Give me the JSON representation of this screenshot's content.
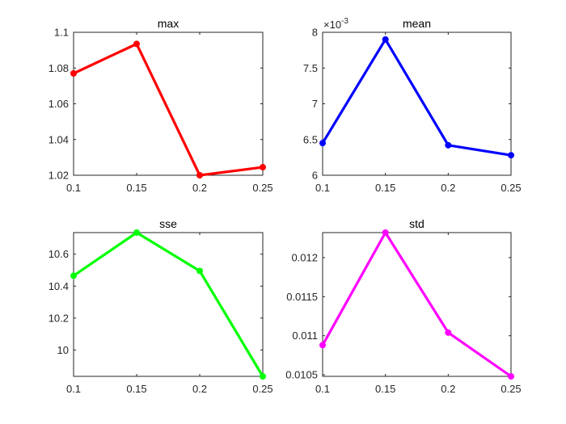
{
  "figure": {
    "background": "#ffffff"
  },
  "chart_data": [
    {
      "type": "line",
      "title": "max",
      "x": [
        0.1,
        0.15,
        0.2,
        0.25
      ],
      "y": [
        1.077,
        1.0935,
        1.02,
        1.0245
      ],
      "color": "#ff0000",
      "xlim": [
        0.1,
        0.25
      ],
      "ylim": [
        1.02,
        1.1
      ],
      "xticks": [
        0.1,
        0.15,
        0.2,
        0.25
      ],
      "xtick_labels": [
        "0.1",
        "0.15",
        "0.2",
        "0.25"
      ],
      "yticks": [
        1.02,
        1.04,
        1.06,
        1.08,
        1.1
      ],
      "ytick_labels": [
        "1.02",
        "1.04",
        "1.06",
        "1.08",
        "1.1"
      ],
      "exponent": ""
    },
    {
      "type": "line",
      "title": "mean",
      "x": [
        0.1,
        0.15,
        0.2,
        0.25
      ],
      "y": [
        6.45,
        7.9,
        6.42,
        6.28
      ],
      "color": "#0000ff",
      "xlim": [
        0.1,
        0.25
      ],
      "ylim": [
        6,
        8
      ],
      "xticks": [
        0.1,
        0.15,
        0.2,
        0.25
      ],
      "xtick_labels": [
        "0.1",
        "0.15",
        "0.2",
        "0.25"
      ],
      "yticks": [
        6,
        6.5,
        7,
        7.5,
        8
      ],
      "ytick_labels": [
        "6",
        "6.5",
        "7",
        "7.5",
        "8"
      ],
      "exponent": "×10",
      "exponent_power": "-3"
    },
    {
      "type": "line",
      "title": "sse",
      "x": [
        0.1,
        0.15,
        0.2,
        0.25
      ],
      "y": [
        10.465,
        10.735,
        10.495,
        9.835
      ],
      "color": "#00ff00",
      "xlim": [
        0.1,
        0.25
      ],
      "ylim": [
        9.835,
        10.735
      ],
      "xticks": [
        0.1,
        0.15,
        0.2,
        0.25
      ],
      "xtick_labels": [
        "0.1",
        "0.15",
        "0.2",
        "0.25"
      ],
      "yticks": [
        10,
        10.2,
        10.4,
        10.6
      ],
      "ytick_labels": [
        "10",
        "10.2",
        "10.4",
        "10.6"
      ],
      "exponent": ""
    },
    {
      "type": "line",
      "title": "std",
      "x": [
        0.1,
        0.15,
        0.2,
        0.25
      ],
      "y": [
        0.01088,
        0.01232,
        0.01104,
        0.01048
      ],
      "color": "#ff00ff",
      "xlim": [
        0.1,
        0.25
      ],
      "ylim": [
        0.01048,
        0.01232
      ],
      "xticks": [
        0.1,
        0.15,
        0.2,
        0.25
      ],
      "xtick_labels": [
        "0.1",
        "0.15",
        "0.2",
        "0.25"
      ],
      "yticks": [
        0.0105,
        0.011,
        0.0115,
        0.012
      ],
      "ytick_labels": [
        "0.0105",
        "0.011",
        "0.0115",
        "0.012"
      ],
      "exponent": ""
    }
  ]
}
